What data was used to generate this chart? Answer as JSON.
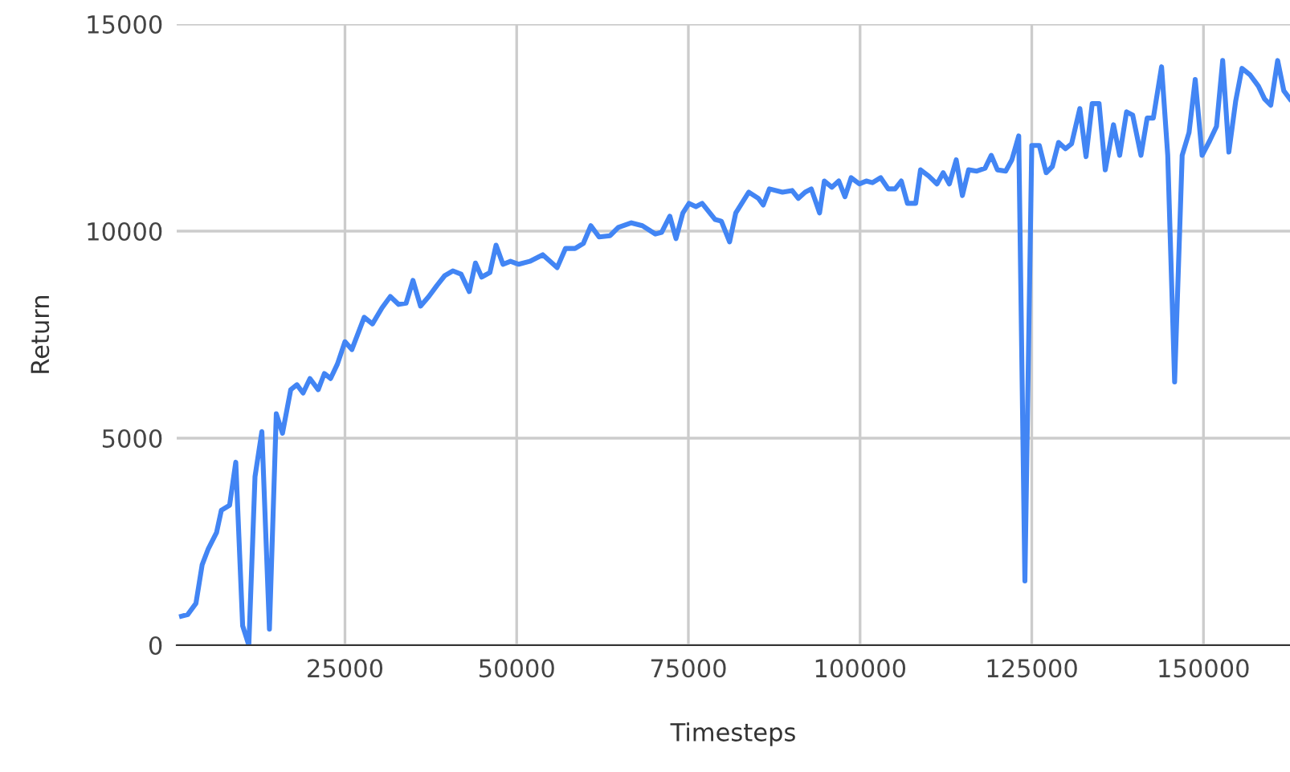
{
  "chart_data": {
    "type": "line",
    "xlabel": "Timesteps",
    "ylabel": "Return",
    "xlim": [
      500,
      162600
    ],
    "xticks": [
      25000,
      50000,
      75000,
      100000,
      125000,
      150000
    ],
    "ylim": [
      0,
      15000
    ],
    "yticks": [
      0,
      5000,
      10000,
      15000
    ],
    "grid": true,
    "legend": false,
    "marker": "none",
    "line_style": "solid",
    "x": [
      1200,
      2100,
      3300,
      4200,
      5100,
      6300,
      7000,
      8200,
      9100,
      10100,
      11000,
      11900,
      12900,
      14000,
      15000,
      15900,
      17100,
      18000,
      18900,
      19900,
      21100,
      22000,
      22900,
      23900,
      25000,
      26000,
      27800,
      29000,
      30400,
      31600,
      32800,
      33900,
      34900,
      36000,
      37200,
      38400,
      39500,
      40700,
      41900,
      43100,
      44000,
      44900,
      46100,
      47000,
      48000,
      49100,
      50300,
      51900,
      53800,
      55900,
      57100,
      58500,
      59700,
      60800,
      62000,
      63600,
      64800,
      66700,
      68300,
      70200,
      71100,
      72300,
      73200,
      74200,
      75100,
      76100,
      77000,
      78900,
      79800,
      81000,
      81900,
      83800,
      85200,
      85900,
      86800,
      88700,
      90100,
      91000,
      92000,
      92900,
      94100,
      94800,
      95900,
      96900,
      97800,
      98700,
      99900,
      100900,
      101800,
      103000,
      104100,
      105100,
      106000,
      106900,
      108100,
      108800,
      110000,
      111200,
      112100,
      113000,
      114000,
      114900,
      115800,
      117000,
      118200,
      119100,
      120000,
      121200,
      122100,
      123100,
      124000,
      125000,
      126100,
      127100,
      128000,
      128900,
      129900,
      130800,
      132000,
      132900,
      133800,
      134800,
      135700,
      136900,
      137800,
      138800,
      139700,
      140900,
      141800,
      142700,
      143900,
      144800,
      145800,
      146900,
      147900,
      148800,
      149800,
      150900,
      151900,
      152800,
      153700,
      154700,
      155600,
      156800,
      158000,
      158900,
      159800,
      160800,
      161700,
      162600
    ],
    "series": [
      {
        "color": "#4285f4",
        "values": [
          700,
          740,
          1010,
          1940,
          2330,
          2720,
          3260,
          3380,
          4420,
          470,
          0,
          4070,
          5160,
          390,
          5590,
          5120,
          6170,
          6290,
          6090,
          6440,
          6170,
          6560,
          6440,
          6790,
          7330,
          7140,
          7920,
          7760,
          8150,
          8420,
          8230,
          8260,
          8810,
          8190,
          8420,
          8690,
          8920,
          9040,
          8960,
          8540,
          9230,
          8890,
          9000,
          9660,
          9200,
          9270,
          9200,
          9270,
          9430,
          9120,
          9580,
          9580,
          9700,
          10130,
          9860,
          9890,
          10090,
          10200,
          10130,
          9930,
          9970,
          10360,
          9820,
          10440,
          10670,
          10590,
          10670,
          10280,
          10240,
          9740,
          10440,
          10940,
          10790,
          10630,
          11020,
          10940,
          10980,
          10790,
          10940,
          11020,
          10440,
          11210,
          11060,
          11210,
          10830,
          11290,
          11140,
          11210,
          11170,
          11290,
          11020,
          11020,
          11210,
          10670,
          10670,
          11480,
          11330,
          11140,
          11410,
          11140,
          11720,
          10860,
          11480,
          11450,
          11520,
          11830,
          11480,
          11450,
          11720,
          12300,
          1550,
          12070,
          12070,
          11410,
          11560,
          12140,
          11990,
          12110,
          12960,
          11800,
          13080,
          13080,
          11480,
          12570,
          11830,
          12880,
          12800,
          11830,
          12730,
          12730,
          13970,
          11830,
          6360,
          11830,
          12380,
          13660,
          11830,
          12180,
          12530,
          14120,
          11910,
          13150,
          13930,
          13770,
          13500,
          13190,
          13040,
          14120,
          13390,
          13190
        ]
      }
    ]
  }
}
